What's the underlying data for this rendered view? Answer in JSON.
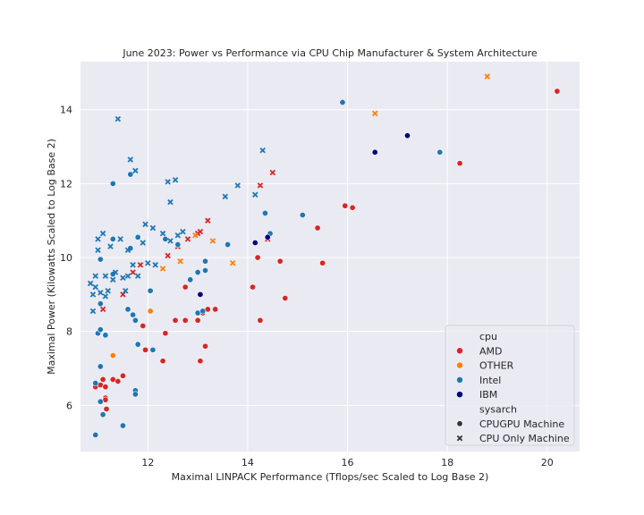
{
  "chart_data": {
    "type": "scatter",
    "title": "June 2023: Power vs Performance via CPU Chip Manufacturer & System Architecture",
    "xlabel": "Maximal LINPACK Performance (Tflops/sec Scaled to Log Base 2)",
    "ylabel": "Maximal Power (Kilowatts Scaled to Log Base 2)",
    "xlim": [
      10.65,
      20.65
    ],
    "ylim": [
      4.75,
      15.3
    ],
    "xticks": [
      "12",
      "14",
      "16",
      "18",
      "20"
    ],
    "yticks": [
      "6",
      "8",
      "10",
      "12",
      "14"
    ],
    "grid": true,
    "legend": {
      "placement": "lower-right",
      "hue_title": "cpu",
      "style_title": "sysarch",
      "hue_entries": [
        {
          "name": "AMD",
          "color": "#d62728"
        },
        {
          "name": "OTHER",
          "color": "#ff7f0e"
        },
        {
          "name": "Intel",
          "color": "#1f77b4"
        },
        {
          "name": "IBM",
          "color": "#000080"
        }
      ],
      "style_entries": [
        {
          "name": "CPUGPU Machine",
          "marker": "circle"
        },
        {
          "name": "CPU Only Machine",
          "marker": "x"
        }
      ]
    },
    "series": [
      {
        "cpu": "AMD",
        "sysarch": "CPUGPU Machine",
        "points": [
          [
            10.95,
            6.5
          ],
          [
            11.05,
            6.55
          ],
          [
            11.1,
            6.7
          ],
          [
            11.15,
            6.5
          ],
          [
            11.3,
            6.7
          ],
          [
            11.4,
            6.65
          ],
          [
            11.5,
            6.8
          ],
          [
            11.15,
            6.2
          ],
          [
            11.15,
            6.15
          ],
          [
            11.17,
            5.9
          ],
          [
            11.9,
            8.15
          ],
          [
            11.95,
            7.5
          ],
          [
            12.3,
            7.2
          ],
          [
            12.35,
            7.95
          ],
          [
            12.55,
            8.3
          ],
          [
            12.75,
            8.3
          ],
          [
            12.75,
            9.2
          ],
          [
            13.0,
            8.3
          ],
          [
            13.05,
            7.2
          ],
          [
            13.1,
            8.5
          ],
          [
            13.15,
            7.6
          ],
          [
            13.2,
            8.6
          ],
          [
            13.35,
            8.6
          ],
          [
            14.1,
            9.2
          ],
          [
            14.2,
            10.0
          ],
          [
            14.25,
            8.3
          ],
          [
            14.65,
            9.9
          ],
          [
            14.75,
            8.9
          ],
          [
            15.4,
            10.8
          ],
          [
            15.5,
            9.85
          ],
          [
            15.95,
            11.4
          ],
          [
            16.1,
            11.35
          ],
          [
            18.25,
            12.55
          ],
          [
            20.2,
            14.5
          ]
        ]
      },
      {
        "cpu": "AMD",
        "sysarch": "CPU Only Machine",
        "points": [
          [
            11.1,
            8.6
          ],
          [
            11.5,
            9.0
          ],
          [
            11.7,
            9.6
          ],
          [
            11.85,
            9.8
          ],
          [
            12.4,
            10.05
          ],
          [
            12.6,
            10.3
          ],
          [
            12.8,
            10.5
          ],
          [
            13.0,
            10.65
          ],
          [
            13.05,
            10.7
          ],
          [
            13.2,
            11.0
          ],
          [
            14.25,
            11.95
          ],
          [
            14.5,
            12.3
          ],
          [
            14.4,
            10.5
          ]
        ]
      },
      {
        "cpu": "OTHER",
        "sysarch": "CPUGPU Machine",
        "points": [
          [
            11.3,
            7.35
          ],
          [
            12.05,
            8.55
          ]
        ]
      },
      {
        "cpu": "OTHER",
        "sysarch": "CPU Only Machine",
        "points": [
          [
            12.3,
            9.7
          ],
          [
            12.65,
            9.9
          ],
          [
            12.95,
            10.6
          ],
          [
            13.3,
            10.45
          ],
          [
            13.7,
            9.85
          ],
          [
            16.55,
            13.9
          ],
          [
            18.8,
            14.9
          ]
        ]
      },
      {
        "cpu": "Intel",
        "sysarch": "CPUGPU Machine",
        "points": [
          [
            10.95,
            5.2
          ],
          [
            10.95,
            6.6
          ],
          [
            11.05,
            7.05
          ],
          [
            11.05,
            6.1
          ],
          [
            11.1,
            5.75
          ],
          [
            11.5,
            5.45
          ],
          [
            11.0,
            7.95
          ],
          [
            11.05,
            8.05
          ],
          [
            11.15,
            7.9
          ],
          [
            11.05,
            9.95
          ],
          [
            11.05,
            8.75
          ],
          [
            11.3,
            9.55
          ],
          [
            11.3,
            10.5
          ],
          [
            11.3,
            12.0
          ],
          [
            11.6,
            8.6
          ],
          [
            11.7,
            8.45
          ],
          [
            11.75,
            8.3
          ],
          [
            11.8,
            7.65
          ],
          [
            11.75,
            6.4
          ],
          [
            11.75,
            6.3
          ],
          [
            11.8,
            10.55
          ],
          [
            11.65,
            10.25
          ],
          [
            11.65,
            12.25
          ],
          [
            12.05,
            9.1
          ],
          [
            12.1,
            7.5
          ],
          [
            12.35,
            10.5
          ],
          [
            12.6,
            10.35
          ],
          [
            12.85,
            9.4
          ],
          [
            13.0,
            9.6
          ],
          [
            13.0,
            8.5
          ],
          [
            13.1,
            8.55
          ],
          [
            13.15,
            9.65
          ],
          [
            13.15,
            9.9
          ],
          [
            13.6,
            10.35
          ],
          [
            14.35,
            11.2
          ],
          [
            14.45,
            10.65
          ],
          [
            15.1,
            11.15
          ],
          [
            15.9,
            14.2
          ],
          [
            17.85,
            12.85
          ]
        ]
      },
      {
        "cpu": "Intel",
        "sysarch": "CPU Only Machine",
        "points": [
          [
            10.85,
            9.3
          ],
          [
            10.9,
            9.0
          ],
          [
            10.95,
            9.2
          ],
          [
            10.95,
            9.5
          ],
          [
            11.0,
            10.2
          ],
          [
            11.0,
            10.5
          ],
          [
            11.05,
            9.05
          ],
          [
            11.1,
            10.65
          ],
          [
            11.15,
            9.5
          ],
          [
            11.15,
            8.95
          ],
          [
            11.2,
            9.1
          ],
          [
            11.25,
            10.3
          ],
          [
            11.3,
            9.4
          ],
          [
            11.35,
            9.6
          ],
          [
            11.4,
            13.75
          ],
          [
            11.45,
            10.5
          ],
          [
            11.5,
            9.45
          ],
          [
            11.55,
            9.1
          ],
          [
            11.6,
            9.5
          ],
          [
            11.6,
            10.2
          ],
          [
            11.65,
            12.65
          ],
          [
            11.7,
            9.8
          ],
          [
            11.75,
            12.35
          ],
          [
            11.8,
            9.5
          ],
          [
            11.9,
            10.4
          ],
          [
            11.95,
            10.9
          ],
          [
            12.0,
            9.85
          ],
          [
            12.1,
            10.8
          ],
          [
            12.15,
            9.8
          ],
          [
            12.3,
            10.65
          ],
          [
            12.4,
            12.05
          ],
          [
            12.45,
            10.45
          ],
          [
            12.45,
            11.5
          ],
          [
            12.55,
            12.1
          ],
          [
            12.6,
            10.6
          ],
          [
            12.7,
            10.7
          ],
          [
            13.55,
            11.65
          ],
          [
            13.8,
            11.95
          ],
          [
            14.15,
            11.7
          ],
          [
            14.3,
            12.9
          ],
          [
            10.9,
            8.55
          ]
        ]
      },
      {
        "cpu": "IBM",
        "sysarch": "CPUGPU Machine",
        "points": [
          [
            13.05,
            9.0
          ],
          [
            14.15,
            10.4
          ],
          [
            14.4,
            10.55
          ],
          [
            16.55,
            12.85
          ],
          [
            17.2,
            13.3
          ]
        ]
      }
    ]
  }
}
